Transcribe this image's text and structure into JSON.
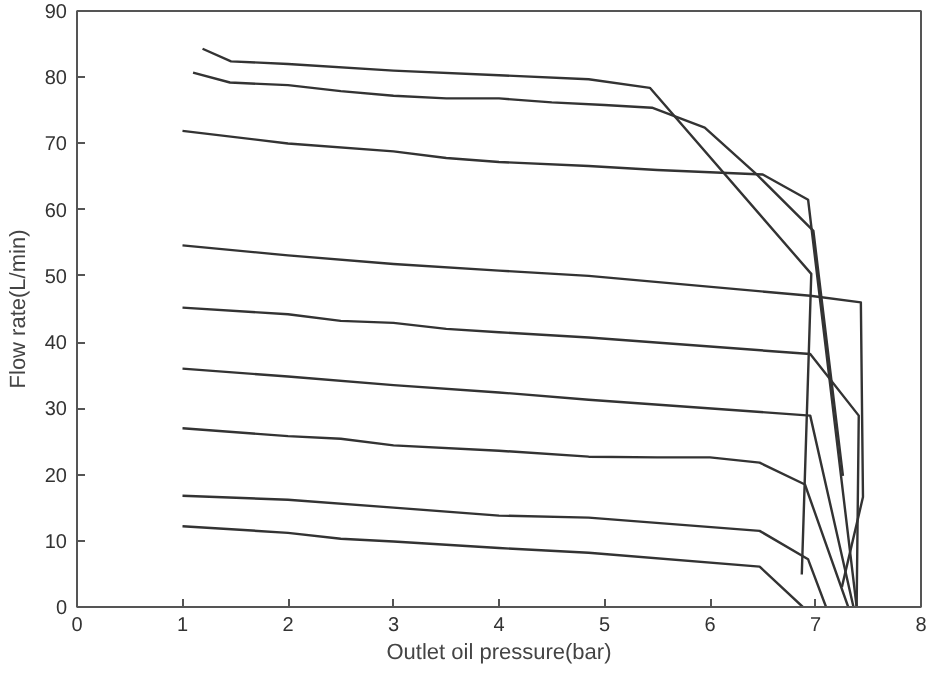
{
  "chart_data": {
    "type": "line",
    "xlabel": "Outlet oil pressure(bar)",
    "ylabel": "Flow rate(L/min)",
    "xlim": [
      0,
      8
    ],
    "ylim": [
      0,
      90
    ],
    "xticks": [
      0,
      1,
      2,
      3,
      4,
      5,
      6,
      7,
      8
    ],
    "yticks": [
      0,
      10,
      20,
      30,
      40,
      50,
      60,
      70,
      80,
      90
    ],
    "marker": "none",
    "line_style": "solid",
    "series": [
      {
        "color": "#333333",
        "x": [
          1.19,
          1.46,
          2,
          3,
          4,
          4.85,
          5.43,
          6.96,
          6.87
        ],
        "values": [
          84.3,
          82.4,
          82.0,
          81.0,
          80.3,
          79.7,
          78.4,
          50.3,
          4.9
        ]
      },
      {
        "color": "#333333",
        "x": [
          1.1,
          1.45,
          2,
          2.5,
          3,
          3.5,
          4,
          4.5,
          5,
          5.45,
          5.95,
          6.45,
          6.98,
          7.26
        ],
        "values": [
          80.7,
          79.2,
          78.8,
          77.9,
          77.2,
          76.8,
          76.8,
          76.2,
          75.8,
          75.4,
          72.4,
          65.2,
          56.8,
          19.8
        ]
      },
      {
        "color": "#333333",
        "x": [
          1,
          2,
          3,
          3.5,
          4,
          4.85,
          5.5,
          6.5,
          6.93,
          7.39
        ],
        "values": [
          71.9,
          70.0,
          68.8,
          67.8,
          67.2,
          66.6,
          66.0,
          65.3,
          61.5,
          0
        ]
      },
      {
        "color": "#333333",
        "x": [
          1,
          2,
          3,
          4,
          4.85,
          6.95,
          7.43,
          7.45,
          7.25
        ],
        "values": [
          54.6,
          53.1,
          51.8,
          50.8,
          50.0,
          47.0,
          46.0,
          16.6,
          3.0
        ]
      },
      {
        "color": "#333333",
        "x": [
          1,
          2,
          2.5,
          3,
          3.5,
          4,
          4.85,
          6.95,
          7.41,
          7.39
        ],
        "values": [
          45.2,
          44.2,
          43.2,
          42.9,
          42.0,
          41.5,
          40.7,
          38.2,
          28.9,
          0
        ]
      },
      {
        "color": "#333333",
        "x": [
          1,
          2,
          3,
          4,
          4.85,
          6.95,
          7.36
        ],
        "values": [
          36.0,
          34.8,
          33.5,
          32.4,
          31.3,
          28.9,
          0
        ]
      },
      {
        "color": "#333333",
        "x": [
          1,
          2,
          2.5,
          3,
          4,
          4.85,
          5.5,
          6,
          6.47,
          6.9,
          7.31
        ],
        "values": [
          27.0,
          25.8,
          25.4,
          24.4,
          23.6,
          22.7,
          22.6,
          22.6,
          21.8,
          18.5,
          0
        ]
      },
      {
        "color": "#333333",
        "x": [
          1,
          2,
          3,
          4,
          4.85,
          6.47,
          6.93,
          7.1
        ],
        "values": [
          16.8,
          16.2,
          15.0,
          13.8,
          13.5,
          11.5,
          7.2,
          0
        ]
      },
      {
        "color": "#333333",
        "x": [
          1,
          2,
          2.5,
          3,
          4,
          4.85,
          6.47,
          6.88
        ],
        "values": [
          12.2,
          11.2,
          10.3,
          9.9,
          8.9,
          8.2,
          6.1,
          0
        ]
      }
    ]
  }
}
